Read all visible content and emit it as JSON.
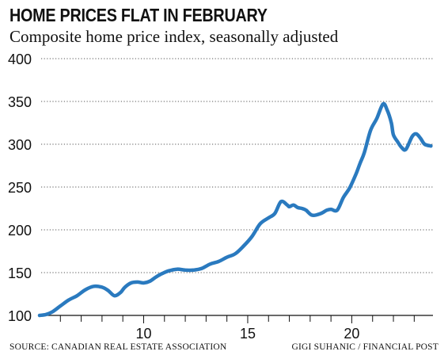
{
  "title": "HOME PRICES FLAT IN FEBRUARY",
  "subtitle": "Composite home price index, seasonally adjusted",
  "source": "SOURCE: CANADIAN REAL ESTATE ASSOCIATION",
  "credit": "GIGI SUHANIC / FINANCIAL POST",
  "chart_data": {
    "type": "line",
    "ylim": [
      100,
      400
    ],
    "xlim": [
      5,
      23.9
    ],
    "y_ticks": [
      100,
      150,
      200,
      250,
      300,
      350,
      400
    ],
    "x_tick_labels": [
      10,
      15,
      20
    ],
    "x_minor_ticks": [
      6,
      7,
      8,
      9,
      10,
      11,
      12,
      13,
      14,
      15,
      16,
      17,
      18,
      19,
      20,
      21,
      22,
      23
    ],
    "grid": "horizontal dotted",
    "line_color": "#2a7abf",
    "series": [
      {
        "x": [
          5.0,
          5.3,
          5.6,
          6.0,
          6.4,
          6.8,
          7.2,
          7.6,
          8.0,
          8.3,
          8.6,
          8.9,
          9.1,
          9.4,
          9.7,
          10.0,
          10.3,
          10.6,
          10.9,
          11.2,
          11.6,
          12.0,
          12.4,
          12.8,
          13.2,
          13.6,
          14.0,
          14.4,
          14.8,
          15.2,
          15.6,
          16.0,
          16.3,
          16.6,
          16.9,
          17.0,
          17.2,
          17.4,
          17.6,
          17.8,
          18.1,
          18.5,
          18.8,
          19.0,
          19.3,
          19.6,
          19.9,
          20.2,
          20.4,
          20.6,
          20.9,
          21.2,
          21.5,
          21.7,
          21.9,
          22.0,
          22.2,
          22.4,
          22.6,
          22.9,
          23.1,
          23.3,
          23.5,
          23.8
        ],
        "y": [
          100,
          101,
          104,
          111,
          118,
          123,
          130,
          134,
          133,
          129,
          123,
          127,
          133,
          138,
          139,
          138,
          140,
          145,
          149,
          152,
          154,
          153,
          153,
          155,
          160,
          163,
          168,
          172,
          181,
          192,
          207,
          214,
          219,
          233,
          229,
          227,
          229,
          226,
          225,
          223,
          217,
          219,
          223,
          224,
          223,
          238,
          249,
          265,
          278,
          290,
          316,
          330,
          347,
          340,
          325,
          311,
          303,
          296,
          294,
          309,
          312,
          307,
          300,
          298
        ]
      }
    ]
  }
}
